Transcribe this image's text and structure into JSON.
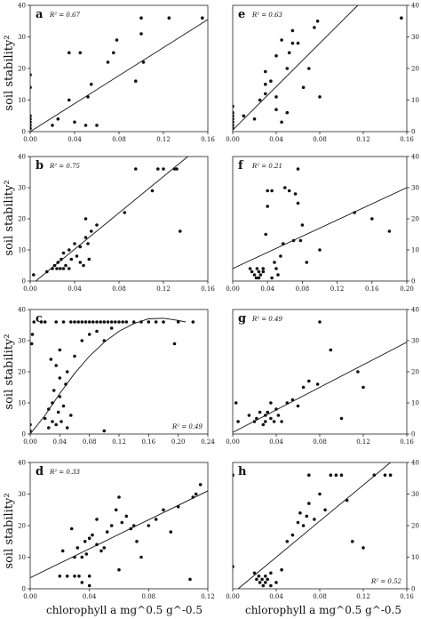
{
  "figure": {
    "y_label": "soil stability²",
    "x_label": "chlorophyll a mg^0.5 g^-0.5"
  },
  "chart_data": [
    {
      "panel": "a",
      "type": "scatter",
      "r2": "R² = 0.67",
      "xlim": [
        0,
        0.16
      ],
      "ylim": [
        0,
        40
      ],
      "xticks": [
        "0.00",
        "0.04",
        "0.08",
        "0.12",
        "0.16"
      ],
      "yticks": [
        "0",
        "10",
        "20",
        "30",
        "40"
      ],
      "ytick_side": "left",
      "fit": {
        "type": "linear",
        "x0": 0,
        "y0": 0,
        "x1": 0.16,
        "y1": 35.5
      },
      "points": [
        [
          0,
          1
        ],
        [
          0,
          2
        ],
        [
          0,
          3
        ],
        [
          0,
          4
        ],
        [
          0,
          5
        ],
        [
          0,
          14
        ],
        [
          0,
          18
        ],
        [
          0.02,
          2
        ],
        [
          0.025,
          4
        ],
        [
          0.035,
          10
        ],
        [
          0.035,
          25
        ],
        [
          0.04,
          3
        ],
        [
          0.045,
          25
        ],
        [
          0.05,
          2
        ],
        [
          0.052,
          11
        ],
        [
          0.055,
          15
        ],
        [
          0.06,
          2
        ],
        [
          0.07,
          22
        ],
        [
          0.075,
          25
        ],
        [
          0.078,
          29
        ],
        [
          0.095,
          16
        ],
        [
          0.1,
          36
        ],
        [
          0.1,
          31
        ],
        [
          0.102,
          22
        ],
        [
          0.125,
          36
        ],
        [
          0.155,
          36
        ]
      ]
    },
    {
      "panel": "e",
      "type": "scatter",
      "r2": "R² = 0.63",
      "xlim": [
        0,
        0.16
      ],
      "ylim": [
        0,
        40
      ],
      "xticks": [
        "0.00",
        "0.04",
        "0.08",
        "0.12",
        "0.16"
      ],
      "yticks": [
        "0",
        "10",
        "20",
        "30",
        "40"
      ],
      "ytick_side": "right",
      "fit": {
        "type": "linear",
        "x0": 0,
        "y0": 0.5,
        "x1": 0.115,
        "y1": 40
      },
      "points": [
        [
          0,
          1
        ],
        [
          0,
          2
        ],
        [
          0,
          3
        ],
        [
          0,
          4
        ],
        [
          0,
          5
        ],
        [
          0,
          6
        ],
        [
          0,
          8
        ],
        [
          0.01,
          5
        ],
        [
          0.02,
          4
        ],
        [
          0.025,
          10
        ],
        [
          0.03,
          12
        ],
        [
          0.03,
          15
        ],
        [
          0.03,
          19
        ],
        [
          0.035,
          16
        ],
        [
          0.04,
          7
        ],
        [
          0.04,
          11
        ],
        [
          0.04,
          24
        ],
        [
          0.045,
          3
        ],
        [
          0.045,
          29
        ],
        [
          0.05,
          20
        ],
        [
          0.05,
          6
        ],
        [
          0.052,
          25
        ],
        [
          0.055,
          28
        ],
        [
          0.055,
          32
        ],
        [
          0.06,
          28
        ],
        [
          0.065,
          14
        ],
        [
          0.07,
          20
        ],
        [
          0.075,
          33
        ],
        [
          0.078,
          35
        ],
        [
          0.08,
          11
        ],
        [
          0.155,
          36
        ]
      ]
    },
    {
      "panel": "b",
      "type": "scatter",
      "r2": "R² = 0.75",
      "xlim": [
        0,
        0.16
      ],
      "ylim": [
        0,
        40
      ],
      "xticks": [
        "0.00",
        "0.04",
        "0.08",
        "0.12",
        "0.16"
      ],
      "yticks": [
        "0",
        "10",
        "20",
        "30",
        "40"
      ],
      "ytick_side": "left",
      "fit": {
        "type": "linear",
        "x0": 0.005,
        "y0": 0,
        "x1": 0.142,
        "y1": 40
      },
      "points": [
        [
          0.003,
          2
        ],
        [
          0.015,
          3
        ],
        [
          0.02,
          4
        ],
        [
          0.022,
          5
        ],
        [
          0.024,
          4
        ],
        [
          0.025,
          6
        ],
        [
          0.027,
          4
        ],
        [
          0.028,
          7
        ],
        [
          0.03,
          9
        ],
        [
          0.03,
          4
        ],
        [
          0.032,
          5
        ],
        [
          0.035,
          4
        ],
        [
          0.035,
          10
        ],
        [
          0.037,
          7
        ],
        [
          0.04,
          12
        ],
        [
          0.042,
          8
        ],
        [
          0.045,
          11
        ],
        [
          0.045,
          6
        ],
        [
          0.048,
          5
        ],
        [
          0.05,
          20
        ],
        [
          0.05,
          14
        ],
        [
          0.052,
          12
        ],
        [
          0.053,
          7
        ],
        [
          0.055,
          16
        ],
        [
          0.06,
          18
        ],
        [
          0.085,
          22
        ],
        [
          0.095,
          36
        ],
        [
          0.11,
          29
        ],
        [
          0.115,
          36
        ],
        [
          0.12,
          36
        ],
        [
          0.13,
          36
        ],
        [
          0.132,
          36
        ],
        [
          0.135,
          16
        ]
      ]
    },
    {
      "panel": "f",
      "type": "scatter",
      "r2": "R² = 0.21",
      "xlim": [
        0,
        0.2
      ],
      "ylim": [
        0,
        40
      ],
      "xticks": [
        "0.00",
        "0.04",
        "0.08",
        "0.12",
        "0.16",
        "0.20"
      ],
      "yticks": [
        "0",
        "10",
        "20",
        "30",
        "40"
      ],
      "ytick_side": "right",
      "fit": {
        "type": "linear",
        "x0": 0,
        "y0": 4,
        "x1": 0.2,
        "y1": 30
      },
      "points": [
        [
          0.02,
          4
        ],
        [
          0.022,
          3
        ],
        [
          0.025,
          2
        ],
        [
          0.027,
          1
        ],
        [
          0.028,
          4
        ],
        [
          0.03,
          1
        ],
        [
          0.03,
          3
        ],
        [
          0.032,
          2
        ],
        [
          0.035,
          4
        ],
        [
          0.035,
          3
        ],
        [
          0.038,
          15
        ],
        [
          0.04,
          24
        ],
        [
          0.04,
          29
        ],
        [
          0.045,
          29
        ],
        [
          0.045,
          1
        ],
        [
          0.048,
          6
        ],
        [
          0.05,
          4
        ],
        [
          0.052,
          2
        ],
        [
          0.055,
          8
        ],
        [
          0.058,
          12
        ],
        [
          0.06,
          30
        ],
        [
          0.065,
          29
        ],
        [
          0.07,
          13
        ],
        [
          0.072,
          28
        ],
        [
          0.075,
          36
        ],
        [
          0.075,
          25
        ],
        [
          0.078,
          13
        ],
        [
          0.08,
          18
        ],
        [
          0.085,
          6
        ],
        [
          0.1,
          10
        ],
        [
          0.14,
          22
        ],
        [
          0.16,
          20
        ],
        [
          0.18,
          16
        ]
      ]
    },
    {
      "panel": "c",
      "type": "scatter",
      "r2": "R² = 0.49",
      "xlim": [
        0,
        0.24
      ],
      "ylim": [
        0,
        40
      ],
      "xticks": [
        "0.00",
        "0.04",
        "0.08",
        "0.12",
        "0.16",
        "0.20",
        "0.24"
      ],
      "yticks": [
        "0",
        "10",
        "20",
        "30",
        "40"
      ],
      "ytick_side": "left",
      "fit": {
        "type": "curve",
        "points": [
          [
            0,
            0
          ],
          [
            0.02,
            6
          ],
          [
            0.04,
            13
          ],
          [
            0.06,
            19.5
          ],
          [
            0.08,
            25
          ],
          [
            0.1,
            29.5
          ],
          [
            0.12,
            33
          ],
          [
            0.14,
            35.5
          ],
          [
            0.16,
            37
          ],
          [
            0.18,
            37.2
          ],
          [
            0.2,
            36.5
          ],
          [
            0.21,
            36
          ]
        ]
      },
      "points": [
        [
          0,
          1
        ],
        [
          0,
          3
        ],
        [
          0.002,
          29
        ],
        [
          0.003,
          32
        ],
        [
          0.005,
          36
        ],
        [
          0.015,
          36
        ],
        [
          0.02,
          36
        ],
        [
          0.02,
          5
        ],
        [
          0.025,
          2
        ],
        [
          0.025,
          8
        ],
        [
          0.028,
          24
        ],
        [
          0.03,
          4
        ],
        [
          0.03,
          10
        ],
        [
          0.032,
          14
        ],
        [
          0.035,
          3
        ],
        [
          0.035,
          22
        ],
        [
          0.035,
          36
        ],
        [
          0.038,
          7
        ],
        [
          0.04,
          18
        ],
        [
          0.04,
          27
        ],
        [
          0.04,
          12
        ],
        [
          0.042,
          4
        ],
        [
          0.045,
          36
        ],
        [
          0.045,
          9
        ],
        [
          0.048,
          16
        ],
        [
          0.05,
          2
        ],
        [
          0.05,
          20
        ],
        [
          0.055,
          36
        ],
        [
          0.055,
          6
        ],
        [
          0.06,
          36
        ],
        [
          0.065,
          36
        ],
        [
          0.07,
          36
        ],
        [
          0.075,
          36
        ],
        [
          0.08,
          36
        ],
        [
          0.085,
          36
        ],
        [
          0.09,
          36
        ],
        [
          0.095,
          36
        ],
        [
          0.1,
          36
        ],
        [
          0.105,
          36
        ],
        [
          0.11,
          36
        ],
        [
          0.115,
          36
        ],
        [
          0.12,
          36
        ],
        [
          0.125,
          36
        ],
        [
          0.13,
          36
        ],
        [
          0.14,
          36
        ],
        [
          0.15,
          36
        ],
        [
          0.16,
          36
        ],
        [
          0.17,
          36
        ],
        [
          0.18,
          36
        ],
        [
          0.2,
          36
        ],
        [
          0.22,
          36
        ],
        [
          0.06,
          25
        ],
        [
          0.07,
          30
        ],
        [
          0.08,
          32
        ],
        [
          0.09,
          33
        ],
        [
          0.1,
          30
        ],
        [
          0.11,
          34
        ],
        [
          0.1,
          1
        ],
        [
          0.195,
          29
        ]
      ]
    },
    {
      "panel": "g",
      "type": "scatter",
      "r2": "R² = 0.49",
      "xlim": [
        0,
        0.16
      ],
      "ylim": [
        0,
        40
      ],
      "xticks": [
        "0.00",
        "0.04",
        "0.08",
        "0.12",
        "0.16"
      ],
      "yticks": [
        "0",
        "10",
        "20",
        "30",
        "40"
      ],
      "ytick_side": "right",
      "fit": {
        "type": "linear",
        "x0": 0,
        "y0": 0.5,
        "x1": 0.16,
        "y1": 29.5
      },
      "points": [
        [
          0.003,
          10
        ],
        [
          0.005,
          4
        ],
        [
          0.015,
          6
        ],
        [
          0.02,
          4
        ],
        [
          0.022,
          5
        ],
        [
          0.025,
          7
        ],
        [
          0.028,
          3
        ],
        [
          0.03,
          4
        ],
        [
          0.03,
          6
        ],
        [
          0.032,
          7
        ],
        [
          0.035,
          5
        ],
        [
          0.035,
          10
        ],
        [
          0.038,
          4
        ],
        [
          0.04,
          8
        ],
        [
          0.042,
          6
        ],
        [
          0.045,
          4
        ],
        [
          0.05,
          10
        ],
        [
          0.055,
          11
        ],
        [
          0.06,
          9
        ],
        [
          0.065,
          15
        ],
        [
          0.07,
          17
        ],
        [
          0.078,
          16
        ],
        [
          0.08,
          36
        ],
        [
          0.09,
          27
        ],
        [
          0.1,
          5
        ],
        [
          0.115,
          20
        ],
        [
          0.12,
          15
        ]
      ]
    },
    {
      "panel": "d",
      "type": "scatter",
      "r2": "R² = 0.33",
      "xlim": [
        0,
        0.12
      ],
      "ylim": [
        0,
        40
      ],
      "xticks": [
        "0.00",
        "0.04",
        "0.08",
        "0.12"
      ],
      "yticks": [
        "0",
        "10",
        "20",
        "30",
        "40"
      ],
      "ytick_side": "left",
      "fit": {
        "type": "linear",
        "x0": 0,
        "y0": 3.5,
        "x1": 0.12,
        "y1": 31
      },
      "points": [
        [
          0.02,
          4
        ],
        [
          0.022,
          12
        ],
        [
          0.025,
          4
        ],
        [
          0.028,
          19
        ],
        [
          0.03,
          4
        ],
        [
          0.03,
          10
        ],
        [
          0.032,
          13
        ],
        [
          0.033,
          4
        ],
        [
          0.035,
          2
        ],
        [
          0.035,
          10
        ],
        [
          0.037,
          15
        ],
        [
          0.038,
          11
        ],
        [
          0.04,
          1
        ],
        [
          0.04,
          4
        ],
        [
          0.04,
          16
        ],
        [
          0.042,
          17
        ],
        [
          0.045,
          14
        ],
        [
          0.045,
          22
        ],
        [
          0.048,
          12
        ],
        [
          0.05,
          13
        ],
        [
          0.052,
          18
        ],
        [
          0.055,
          20
        ],
        [
          0.058,
          25
        ],
        [
          0.06,
          29
        ],
        [
          0.06,
          6
        ],
        [
          0.062,
          21
        ],
        [
          0.065,
          23
        ],
        [
          0.068,
          19
        ],
        [
          0.07,
          20
        ],
        [
          0.072,
          15
        ],
        [
          0.075,
          10
        ],
        [
          0.08,
          20
        ],
        [
          0.085,
          22
        ],
        [
          0.09,
          25
        ],
        [
          0.095,
          18
        ],
        [
          0.1,
          26
        ],
        [
          0.11,
          29
        ],
        [
          0.112,
          30
        ],
        [
          0.115,
          33
        ],
        [
          0.108,
          3
        ]
      ]
    },
    {
      "panel": "h",
      "type": "scatter",
      "r2": "R² = 0.52",
      "xlim": [
        0,
        0.16
      ],
      "ylim": [
        0,
        40
      ],
      "xticks": [
        "0.00",
        "0.04",
        "0.08",
        "0.12",
        "0.16"
      ],
      "yticks": [
        "0",
        "10",
        "20",
        "30",
        "40"
      ],
      "ytick_side": "right",
      "fit": {
        "type": "linear",
        "x0": 0.005,
        "y0": 0,
        "x1": 0.145,
        "y1": 40
      },
      "points": [
        [
          0,
          36
        ],
        [
          0,
          7
        ],
        [
          0.02,
          5
        ],
        [
          0.022,
          3
        ],
        [
          0.024,
          4
        ],
        [
          0.025,
          2
        ],
        [
          0.027,
          3
        ],
        [
          0.028,
          1
        ],
        [
          0.03,
          2
        ],
        [
          0.03,
          4
        ],
        [
          0.032,
          3
        ],
        [
          0.035,
          1
        ],
        [
          0.035,
          5
        ],
        [
          0.04,
          2
        ],
        [
          0.045,
          6
        ],
        [
          0.05,
          15
        ],
        [
          0.055,
          17
        ],
        [
          0.06,
          21
        ],
        [
          0.062,
          24
        ],
        [
          0.065,
          20
        ],
        [
          0.068,
          23
        ],
        [
          0.07,
          27
        ],
        [
          0.075,
          22
        ],
        [
          0.08,
          30
        ],
        [
          0.085,
          25
        ],
        [
          0.09,
          36
        ],
        [
          0.095,
          36
        ],
        [
          0.1,
          36
        ],
        [
          0.105,
          28
        ],
        [
          0.11,
          15
        ],
        [
          0.12,
          13
        ],
        [
          0.13,
          36
        ],
        [
          0.14,
          36
        ],
        [
          0.145,
          36
        ],
        [
          0.07,
          36
        ]
      ]
    }
  ]
}
